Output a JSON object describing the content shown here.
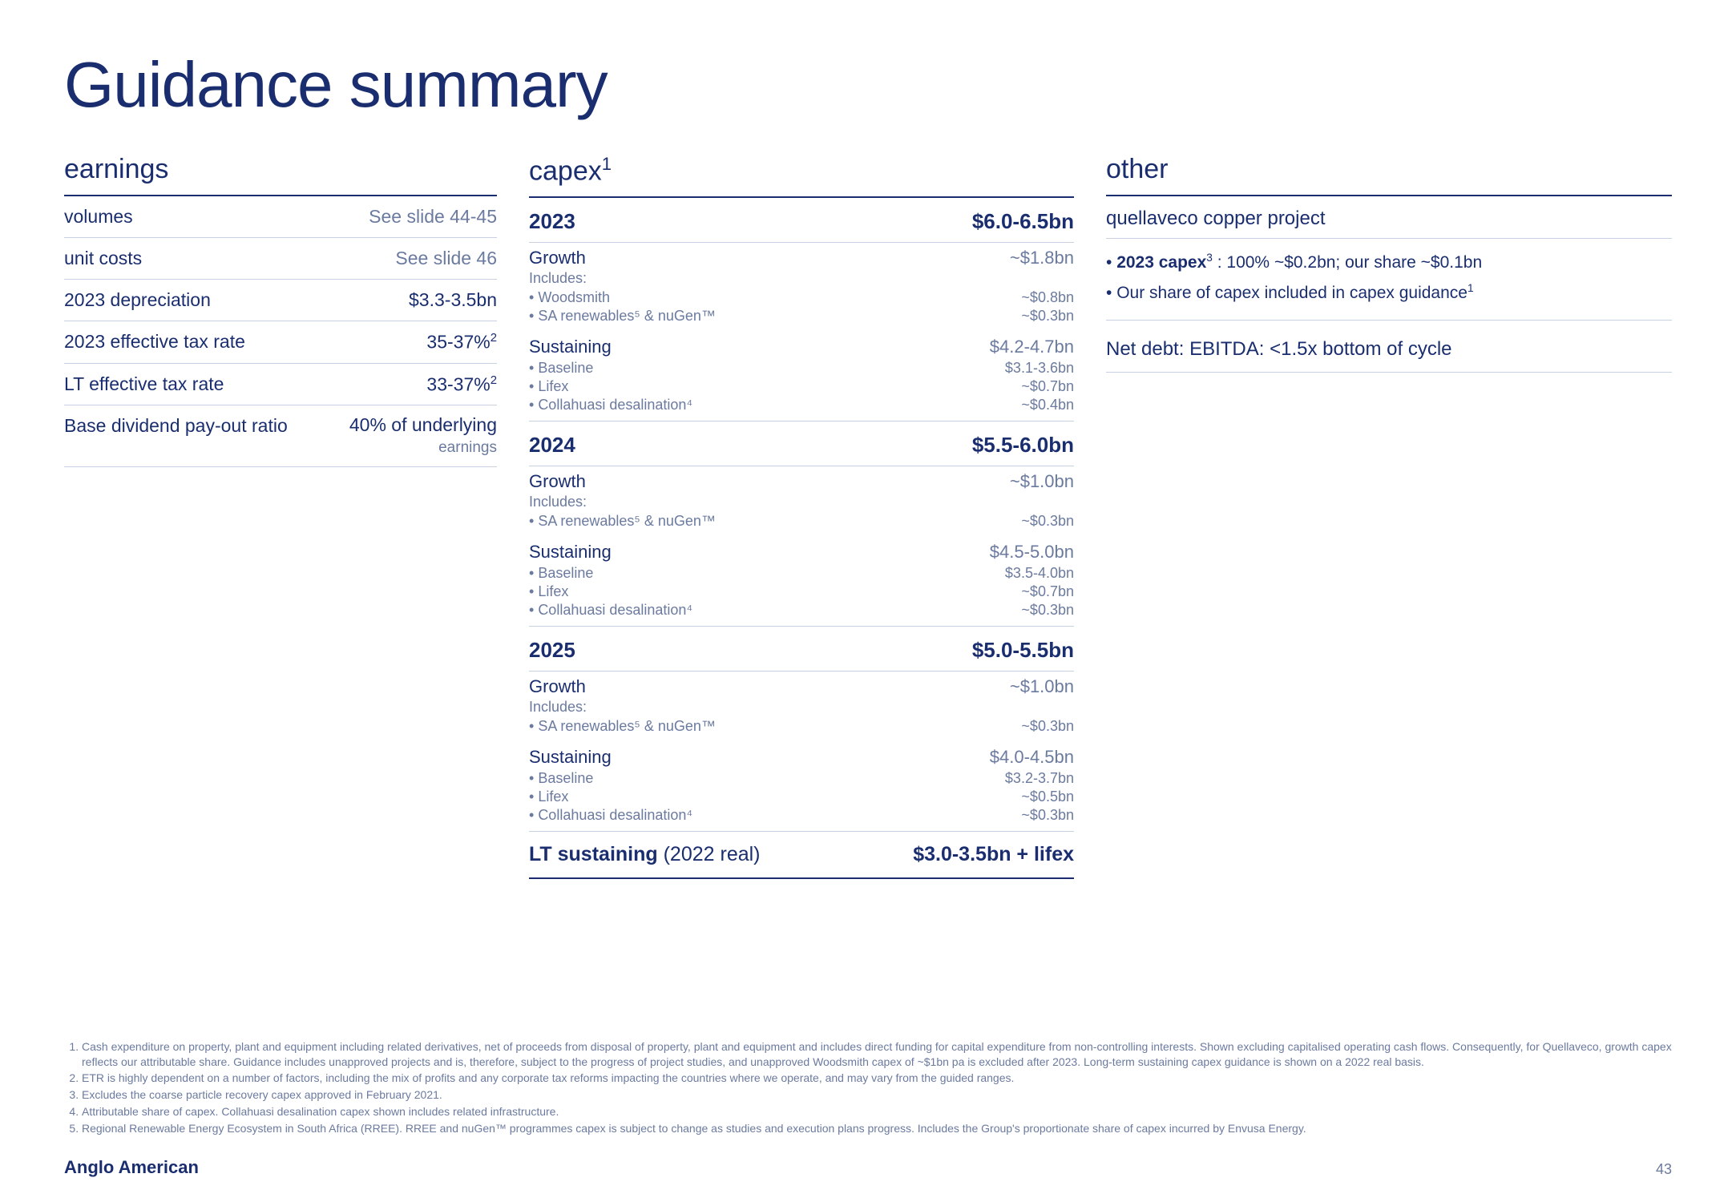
{
  "title": "Guidance summary",
  "page_number": "43",
  "logo": "Anglo American",
  "colors": {
    "primary": "#1a2e6f",
    "muted": "#6b7a9f",
    "rule": "#c8d0e5",
    "bg": "#ffffff"
  },
  "typography": {
    "title_fontsize": 80,
    "section_head_fontsize": 34,
    "row_fontsize": 23,
    "subrow_fontsize": 19,
    "footnote_fontsize": 14
  },
  "earnings": {
    "heading": "earnings",
    "rows": [
      {
        "label": "volumes",
        "value": "See slide 44-45"
      },
      {
        "label": "unit costs",
        "value": "See slide 46"
      },
      {
        "label": "2023 depreciation",
        "value": "$3.3-3.5bn"
      },
      {
        "label": "2023 effective tax rate",
        "value": "35-37%",
        "sup": "2"
      },
      {
        "label": "LT effective tax rate",
        "value": "33-37%",
        "sup": "2"
      }
    ],
    "dividend": {
      "label": "Base dividend pay-out ratio",
      "value_top": "40% of underlying",
      "value_bottom": "earnings"
    }
  },
  "capex": {
    "heading": "capex",
    "heading_sup": "1",
    "years": [
      {
        "year": "2023",
        "total": "$6.0-6.5bn",
        "growth": {
          "label": "Growth",
          "value": "~$1.8bn",
          "includes": "Includes:",
          "items": [
            {
              "label": "Woodsmith",
              "value": "~$0.8bn"
            },
            {
              "label": "SA renewables⁵ & nuGen™",
              "value": "~$0.3bn"
            }
          ]
        },
        "sustaining": {
          "label": "Sustaining",
          "value": "$4.2-4.7bn",
          "items": [
            {
              "label": "Baseline",
              "value": "$3.1-3.6bn"
            },
            {
              "label": "Lifex",
              "value": "~$0.7bn"
            },
            {
              "label": "Collahuasi desalination⁴",
              "value": "~$0.4bn"
            }
          ]
        }
      },
      {
        "year": "2024",
        "total": "$5.5-6.0bn",
        "growth": {
          "label": "Growth",
          "value": "~$1.0bn",
          "includes": "Includes:",
          "items": [
            {
              "label": "SA renewables⁵ & nuGen™",
              "value": "~$0.3bn"
            }
          ]
        },
        "sustaining": {
          "label": "Sustaining",
          "value": "$4.5-5.0bn",
          "items": [
            {
              "label": "Baseline",
              "value": "$3.5-4.0bn"
            },
            {
              "label": "Lifex",
              "value": "~$0.7bn"
            },
            {
              "label": "Collahuasi desalination⁴",
              "value": "~$0.3bn"
            }
          ]
        }
      },
      {
        "year": "2025",
        "total": "$5.0-5.5bn",
        "growth": {
          "label": "Growth",
          "value": "~$1.0bn",
          "includes": "Includes:",
          "items": [
            {
              "label": "SA renewables⁵ & nuGen™",
              "value": "~$0.3bn"
            }
          ]
        },
        "sustaining": {
          "label": "Sustaining",
          "value": "$4.0-4.5bn",
          "items": [
            {
              "label": "Baseline",
              "value": "$3.2-3.7bn"
            },
            {
              "label": "Lifex",
              "value": "~$0.5bn"
            },
            {
              "label": "Collahuasi desalination⁴",
              "value": "~$0.3bn"
            }
          ]
        }
      }
    ],
    "lt": {
      "label": "LT sustaining",
      "paren": "(2022 real)",
      "value": "$3.0-3.5bn + lifex"
    }
  },
  "other": {
    "heading": "other",
    "project": "quellaveco copper project",
    "bullets": [
      "2023 capex³ : 100% ~$0.2bn; our share ~$0.1bn",
      "Our share of capex included in capex guidance¹"
    ],
    "net_debt": "Net debt: EBITDA: <1.5x bottom of cycle"
  },
  "footnotes": [
    "Cash expenditure on property, plant and equipment including related derivatives, net of proceeds from disposal of property, plant and equipment and includes direct funding for capital expenditure from non-controlling interests. Shown excluding capitalised operating cash flows. Consequently, for Quellaveco, growth capex reflects our attributable share. Guidance includes unapproved projects and is, therefore, subject to the progress of project studies, and unapproved Woodsmith capex of ~$1bn pa is excluded after 2023. Long-term sustaining capex guidance is shown on a 2022 real basis.",
    "ETR is highly dependent on a number of factors, including the mix of profits and any corporate tax reforms impacting the countries where we operate, and may vary from the guided ranges.",
    "Excludes the coarse particle recovery capex approved in February 2021.",
    "Attributable share of capex. Collahuasi desalination capex shown includes related infrastructure.",
    "Regional Renewable Energy Ecosystem in South Africa (RREE). RREE and nuGen™ programmes capex is subject to change as studies and execution plans progress. Includes the Group's proportionate share of capex incurred by Envusa Energy."
  ]
}
